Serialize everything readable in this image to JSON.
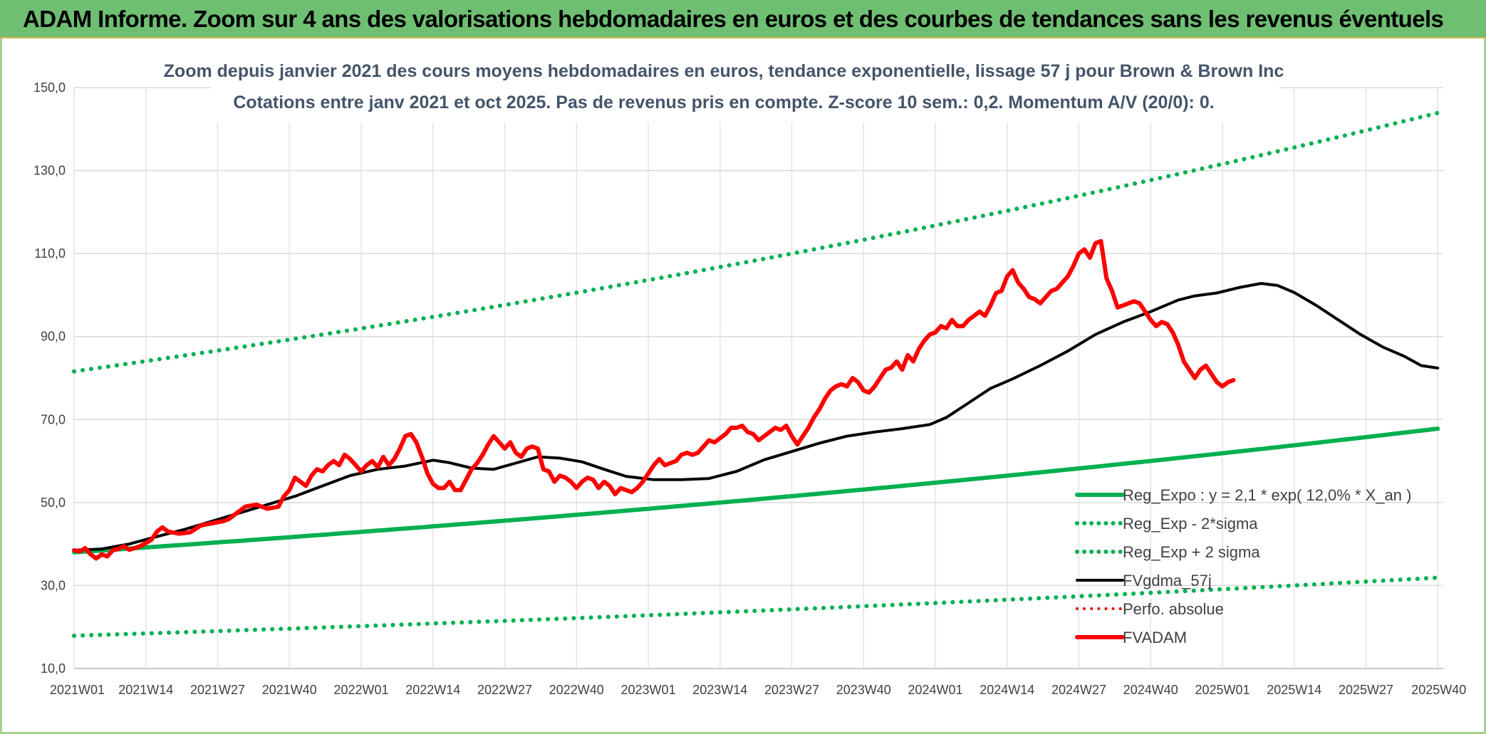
{
  "header": {
    "title": "ADAM Informe. Zoom sur 4 ans des valorisations hebdomadaires en euros et des courbes de tendances sans les revenus éventuels"
  },
  "colors": {
    "banner": "#6fbf73",
    "trend": "#00b050",
    "band": "#00b050",
    "smooth": "#000000",
    "price": "#ff0000",
    "perf": "#ff0000"
  },
  "chart_data": {
    "type": "line",
    "title": [
      "Zoom depuis janvier 2021 des cours moyens hebdomadaires en euros, tendance exponentielle, lissage 57 j pour Brown & Brown Inc",
      "Cotations entre janv 2021 et oct 2025. Pas de revenus pris en compte. Z-score 10 sem.: 0,2. Momentum A/V (20/0): 0."
    ],
    "ylim": [
      10,
      150
    ],
    "y_ticks": [
      "10,0",
      "30,0",
      "50,0",
      "70,0",
      "90,0",
      "110,0",
      "130,0",
      "150,0"
    ],
    "x_range": [
      0,
      248
    ],
    "x_ticks": [
      {
        "x": 0,
        "label": "2021W01"
      },
      {
        "x": 13,
        "label": "2021W14"
      },
      {
        "x": 26,
        "label": "2021W27"
      },
      {
        "x": 39,
        "label": "2021W40"
      },
      {
        "x": 52,
        "label": "2022W01"
      },
      {
        "x": 65,
        "label": "2022W14"
      },
      {
        "x": 78,
        "label": "2022W27"
      },
      {
        "x": 91,
        "label": "2022W40"
      },
      {
        "x": 104,
        "label": "2023W01"
      },
      {
        "x": 117,
        "label": "2023W14"
      },
      {
        "x": 130,
        "label": "2023W27"
      },
      {
        "x": 143,
        "label": "2023W40"
      },
      {
        "x": 156,
        "label": "2024W01"
      },
      {
        "x": 169,
        "label": "2024W14"
      },
      {
        "x": 182,
        "label": "2024W27"
      },
      {
        "x": 195,
        "label": "2024W40"
      },
      {
        "x": 208,
        "label": "2025W01"
      },
      {
        "x": 221,
        "label": "2025W14"
      },
      {
        "x": 234,
        "label": "2025W27"
      },
      {
        "x": 247,
        "label": "2025W40"
      }
    ],
    "series": [
      {
        "name": "Reg_Expo : y = 2,1 * exp( 12,0% *  X_an )",
        "style": "solid",
        "width": 6,
        "points": [
          [
            0,
            38.0
          ],
          [
            247,
            67.8
          ]
        ]
      },
      {
        "name": "Reg_Exp - 2*sigma",
        "style": "dotted",
        "width": 6,
        "points": [
          [
            0,
            17.9
          ],
          [
            247,
            31.9
          ]
        ]
      },
      {
        "name": "Reg_Exp + 2 sigma",
        "style": "dotted",
        "width": 6,
        "points": [
          [
            0,
            81.6
          ],
          [
            247,
            143.9
          ]
        ]
      },
      {
        "name": "FVgdma_57j",
        "style": "solid",
        "width": 4,
        "points": [
          [
            0,
            38.5
          ],
          [
            5,
            38.8
          ],
          [
            10,
            40
          ],
          [
            15,
            41.8
          ],
          [
            20,
            43.5
          ],
          [
            25,
            45.5
          ],
          [
            30,
            47.5
          ],
          [
            35,
            49.5
          ],
          [
            40,
            51.5
          ],
          [
            45,
            54
          ],
          [
            50,
            56.5
          ],
          [
            55,
            58
          ],
          [
            60,
            58.8
          ],
          [
            65,
            60.2
          ],
          [
            68,
            59.6
          ],
          [
            72,
            58.3
          ],
          [
            76,
            58
          ],
          [
            80,
            59.5
          ],
          [
            84,
            61
          ],
          [
            88,
            60.7
          ],
          [
            92,
            59.8
          ],
          [
            96,
            58
          ],
          [
            100,
            56.3
          ],
          [
            105,
            55.5
          ],
          [
            110,
            55.5
          ],
          [
            115,
            55.8
          ],
          [
            120,
            57.5
          ],
          [
            125,
            60.3
          ],
          [
            130,
            62.3
          ],
          [
            135,
            64.3
          ],
          [
            140,
            66
          ],
          [
            145,
            67
          ],
          [
            150,
            67.8
          ],
          [
            155,
            68.8
          ],
          [
            158,
            70.5
          ],
          [
            162,
            74
          ],
          [
            166,
            77.5
          ],
          [
            170,
            79.8
          ],
          [
            175,
            83
          ],
          [
            180,
            86.5
          ],
          [
            185,
            90.5
          ],
          [
            190,
            93.5
          ],
          [
            195,
            96
          ],
          [
            200,
            98.8
          ],
          [
            203,
            99.8
          ],
          [
            207,
            100.5
          ],
          [
            211,
            101.8
          ],
          [
            215,
            102.8
          ],
          [
            218,
            102.3
          ],
          [
            221,
            100.6
          ],
          [
            225,
            97.5
          ],
          [
            229,
            94
          ],
          [
            233,
            90.5
          ],
          [
            237,
            87.5
          ],
          [
            241,
            85.2
          ],
          [
            244,
            83
          ],
          [
            247,
            82.4
          ]
        ]
      },
      {
        "name": "Perfo. absolue",
        "style": "dotted",
        "width": 4,
        "points": []
      },
      {
        "name": "FVADAM",
        "style": "solid",
        "width": 6,
        "points": [
          [
            0,
            38.5
          ],
          [
            1,
            38.2
          ],
          [
            2,
            39
          ],
          [
            3,
            37.5
          ],
          [
            4,
            36.5
          ],
          [
            5,
            37.5
          ],
          [
            6,
            37
          ],
          [
            7,
            38.5
          ],
          [
            8,
            38.8
          ],
          [
            9,
            39.5
          ],
          [
            10,
            38.6
          ],
          [
            12,
            39.5
          ],
          [
            14,
            41
          ],
          [
            15,
            43
          ],
          [
            16,
            44
          ],
          [
            17,
            43
          ],
          [
            19,
            42.5
          ],
          [
            21,
            42.8
          ],
          [
            23,
            44.5
          ],
          [
            25,
            45
          ],
          [
            27,
            45.5
          ],
          [
            28,
            46
          ],
          [
            29,
            47
          ],
          [
            31,
            49
          ],
          [
            33,
            49.5
          ],
          [
            35,
            48.5
          ],
          [
            37,
            49
          ],
          [
            38,
            51.5
          ],
          [
            39,
            53
          ],
          [
            40,
            56
          ],
          [
            41,
            55
          ],
          [
            42,
            54
          ],
          [
            43,
            56.5
          ],
          [
            44,
            58
          ],
          [
            45,
            57.5
          ],
          [
            46,
            59
          ],
          [
            47,
            60
          ],
          [
            48,
            59
          ],
          [
            49,
            61.5
          ],
          [
            50,
            60.5
          ],
          [
            51,
            59
          ],
          [
            52,
            57.5
          ],
          [
            53,
            59
          ],
          [
            54,
            60
          ],
          [
            55,
            58.5
          ],
          [
            56,
            61
          ],
          [
            57,
            59
          ],
          [
            58,
            60.5
          ],
          [
            59,
            63
          ],
          [
            60,
            66
          ],
          [
            61,
            66.5
          ],
          [
            62,
            64.5
          ],
          [
            63,
            61
          ],
          [
            64,
            57
          ],
          [
            65,
            54.5
          ],
          [
            66,
            53.5
          ],
          [
            67,
            53.5
          ],
          [
            68,
            55
          ],
          [
            69,
            53
          ],
          [
            70,
            53
          ],
          [
            71,
            55.5
          ],
          [
            72,
            58
          ],
          [
            73,
            59.5
          ],
          [
            74,
            61.5
          ],
          [
            75,
            64
          ],
          [
            76,
            66
          ],
          [
            77,
            64.5
          ],
          [
            78,
            63
          ],
          [
            79,
            64.5
          ],
          [
            80,
            62
          ],
          [
            81,
            61
          ],
          [
            82,
            63
          ],
          [
            83,
            63.5
          ],
          [
            84,
            63
          ],
          [
            85,
            58
          ],
          [
            86,
            57.5
          ],
          [
            87,
            55
          ],
          [
            88,
            56.5
          ],
          [
            89,
            56
          ],
          [
            90,
            55
          ],
          [
            91,
            53.5
          ],
          [
            92,
            55
          ],
          [
            93,
            56
          ],
          [
            94,
            55.5
          ],
          [
            95,
            53.5
          ],
          [
            96,
            55
          ],
          [
            97,
            54
          ],
          [
            98,
            52
          ],
          [
            99,
            53.5
          ],
          [
            100,
            53
          ],
          [
            101,
            52.5
          ],
          [
            102,
            53.5
          ],
          [
            103,
            55
          ],
          [
            104,
            57
          ],
          [
            105,
            59
          ],
          [
            106,
            60.5
          ],
          [
            107,
            59
          ],
          [
            108,
            59.5
          ],
          [
            109,
            60
          ],
          [
            110,
            61.5
          ],
          [
            111,
            62
          ],
          [
            112,
            61.5
          ],
          [
            113,
            62
          ],
          [
            114,
            63.5
          ],
          [
            115,
            65
          ],
          [
            116,
            64.5
          ],
          [
            117,
            65.5
          ],
          [
            118,
            66.5
          ],
          [
            119,
            68
          ],
          [
            120,
            68
          ],
          [
            121,
            68.5
          ],
          [
            122,
            67
          ],
          [
            123,
            66.5
          ],
          [
            124,
            65
          ],
          [
            125,
            66
          ],
          [
            126,
            67
          ],
          [
            127,
            68
          ],
          [
            128,
            67.5
          ],
          [
            129,
            68.5
          ],
          [
            130,
            66
          ],
          [
            131,
            64
          ],
          [
            132,
            66
          ],
          [
            133,
            68
          ],
          [
            134,
            70.5
          ],
          [
            135,
            72.5
          ],
          [
            136,
            75
          ],
          [
            137,
            77
          ],
          [
            138,
            78
          ],
          [
            139,
            78.5
          ],
          [
            140,
            78
          ],
          [
            141,
            80
          ],
          [
            142,
            79
          ],
          [
            143,
            77
          ],
          [
            144,
            76.5
          ],
          [
            145,
            78
          ],
          [
            146,
            80
          ],
          [
            147,
            82
          ],
          [
            148,
            82.5
          ],
          [
            149,
            84
          ],
          [
            150,
            82
          ],
          [
            151,
            85.5
          ],
          [
            152,
            84
          ],
          [
            153,
            87
          ],
          [
            154,
            89
          ],
          [
            155,
            90.5
          ],
          [
            156,
            91
          ],
          [
            157,
            92.5
          ],
          [
            158,
            92
          ],
          [
            159,
            94
          ],
          [
            160,
            92.5
          ],
          [
            161,
            92.5
          ],
          [
            162,
            94
          ],
          [
            163,
            95
          ],
          [
            164,
            96
          ],
          [
            165,
            95
          ],
          [
            166,
            97.5
          ],
          [
            167,
            100.5
          ],
          [
            168,
            101
          ],
          [
            169,
            104.5
          ],
          [
            170,
            106
          ],
          [
            171,
            103
          ],
          [
            172,
            101.5
          ],
          [
            173,
            99.5
          ],
          [
            174,
            99
          ],
          [
            175,
            98
          ],
          [
            176,
            99.5
          ],
          [
            177,
            101
          ],
          [
            178,
            101.5
          ],
          [
            179,
            103
          ],
          [
            180,
            104.5
          ],
          [
            181,
            107
          ],
          [
            182,
            110
          ],
          [
            183,
            111
          ],
          [
            184,
            109
          ],
          [
            185,
            112.5
          ],
          [
            186,
            113
          ],
          [
            187,
            104
          ],
          [
            188,
            101
          ],
          [
            189,
            97
          ],
          [
            190,
            97.5
          ],
          [
            191,
            98
          ],
          [
            192,
            98.5
          ],
          [
            193,
            98
          ],
          [
            194,
            96
          ],
          [
            195,
            94
          ],
          [
            196,
            92.5
          ],
          [
            197,
            93.5
          ],
          [
            198,
            93
          ],
          [
            199,
            91
          ],
          [
            200,
            88
          ],
          [
            201,
            84
          ],
          [
            202,
            82
          ],
          [
            203,
            80
          ],
          [
            204,
            82
          ],
          [
            205,
            83
          ],
          [
            206,
            81
          ],
          [
            207,
            79
          ],
          [
            208,
            78
          ],
          [
            209,
            79
          ],
          [
            210,
            79.5
          ]
        ]
      }
    ],
    "legend": [
      "Reg_Expo : y = 2,1 * exp( 12,0% *  X_an )",
      "Reg_Exp - 2*sigma",
      "Reg_Exp + 2 sigma",
      "FVgdma_57j",
      "Perfo. absolue",
      "FVADAM"
    ],
    "grid": true
  }
}
